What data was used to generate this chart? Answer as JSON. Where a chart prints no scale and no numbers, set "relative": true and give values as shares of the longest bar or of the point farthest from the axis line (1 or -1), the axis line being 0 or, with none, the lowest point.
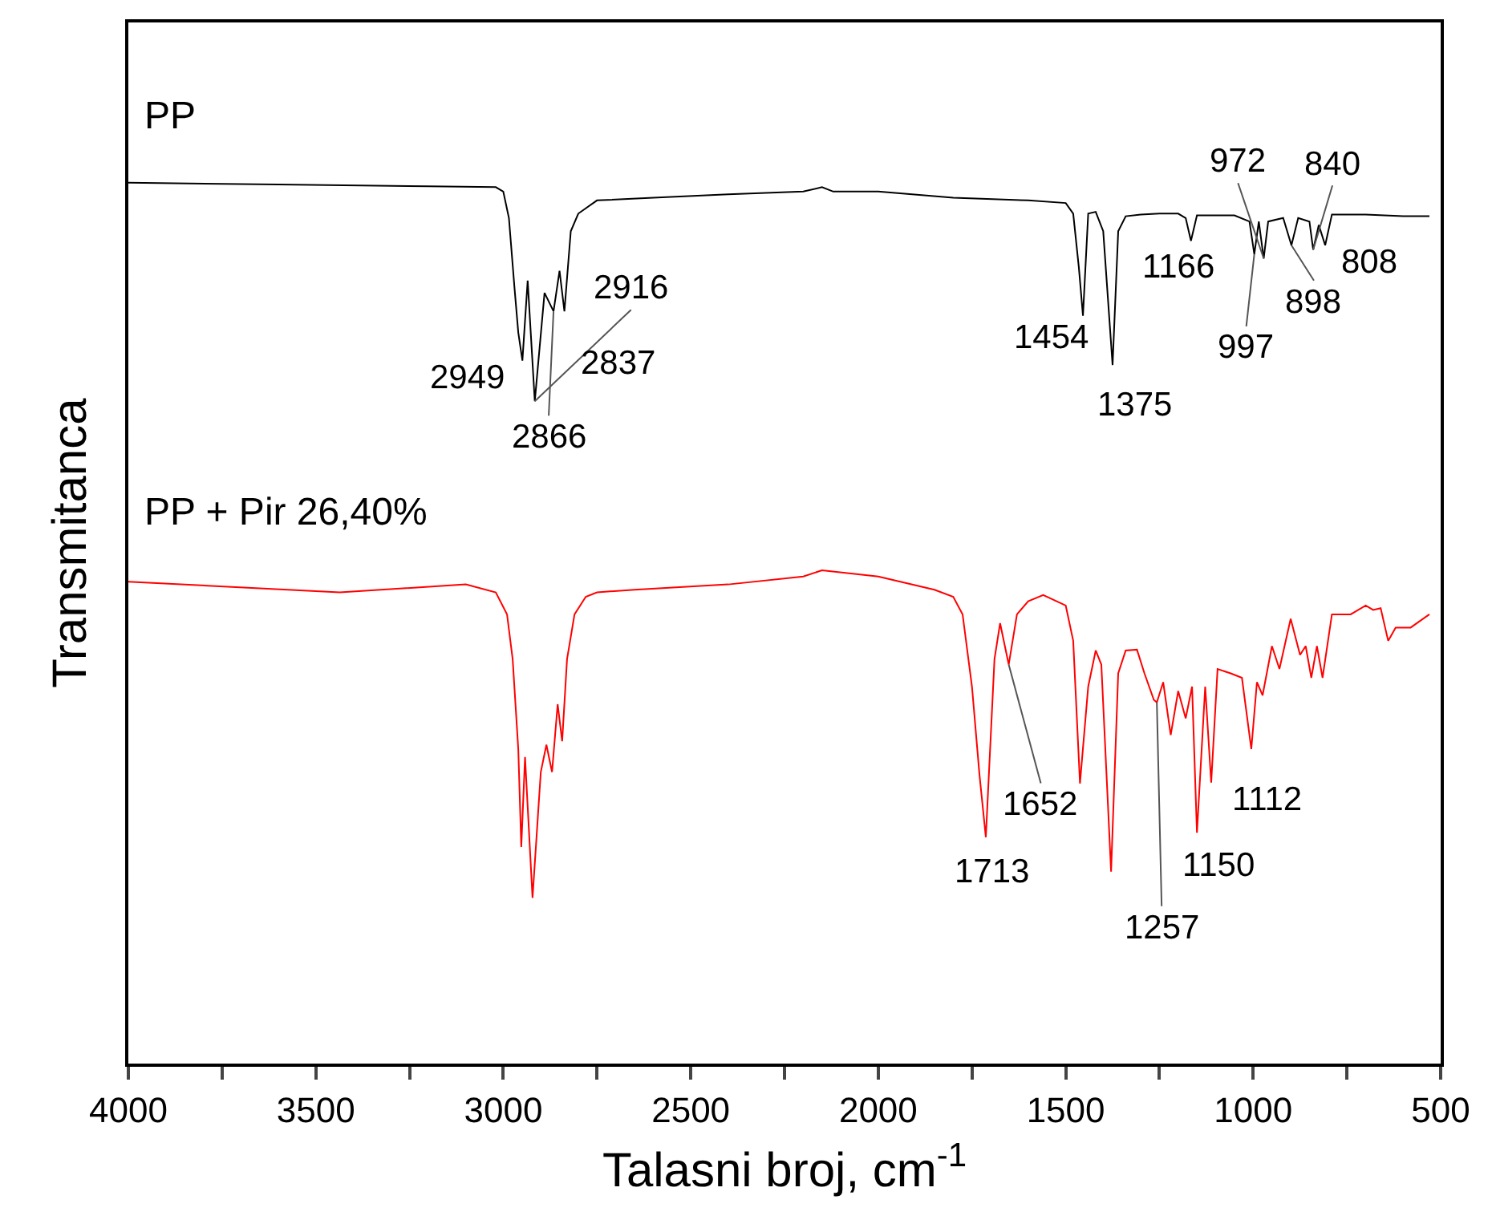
{
  "chart_data": {
    "type": "line",
    "relative": true,
    "xlabel": "Talasni broj, cm$^{-1}$",
    "ylabel": "Transmitanca",
    "xlim": [
      4000,
      500
    ],
    "xticks": [
      4000,
      {
        "value": 3750,
        "label": null
      },
      3500,
      {
        "value": 3250,
        "label": null
      },
      3000,
      {
        "value": 2750,
        "label": null
      },
      2500,
      {
        "value": 2250,
        "label": null
      },
      2000,
      {
        "value": 1750,
        "label": null
      },
      1500,
      {
        "value": 1250,
        "label": null
      },
      1000,
      {
        "value": 750,
        "label": null
      },
      500
    ],
    "legend": false,
    "marker": "none",
    "line_style": "solid",
    "series": [
      {
        "name": "PP",
        "color": "#000000",
        "x": [
          4000,
          3600,
          3200,
          3020,
          3000,
          2985,
          2970,
          2960,
          2949,
          2935,
          2916,
          2890,
          2866,
          2850,
          2837,
          2820,
          2800,
          2750,
          2600,
          2400,
          2200,
          2150,
          2120,
          2000,
          1800,
          1600,
          1500,
          1480,
          1465,
          1454,
          1440,
          1420,
          1400,
          1375,
          1360,
          1340,
          1300,
          1250,
          1200,
          1180,
          1166,
          1150,
          1100,
          1050,
          1010,
          997,
          985,
          972,
          960,
          920,
          898,
          880,
          850,
          840,
          825,
          808,
          790,
          700,
          600,
          530
        ],
        "values": [
          1.0,
          0.998,
          0.996,
          0.995,
          0.99,
          0.96,
          0.88,
          0.83,
          0.798,
          0.889,
          0.752,
          0.875,
          0.854,
          0.9,
          0.854,
          0.945,
          0.965,
          0.98,
          0.983,
          0.987,
          0.99,
          0.995,
          0.99,
          0.99,
          0.983,
          0.98,
          0.977,
          0.965,
          0.904,
          0.849,
          0.965,
          0.967,
          0.945,
          0.793,
          0.945,
          0.962,
          0.964,
          0.965,
          0.965,
          0.96,
          0.934,
          0.963,
          0.963,
          0.963,
          0.956,
          0.919,
          0.956,
          0.914,
          0.956,
          0.96,
          0.929,
          0.96,
          0.956,
          0.924,
          0.952,
          0.929,
          0.964,
          0.964,
          0.962,
          0.962
        ]
      },
      {
        "name": "PP + Pir 26,40%",
        "color": "#ff0000",
        "x": [
          4000,
          3436,
          3100,
          3020,
          2990,
          2975,
          2960,
          2952,
          2942,
          2922,
          2900,
          2885,
          2870,
          2855,
          2843,
          2830,
          2810,
          2780,
          2750,
          2650,
          2400,
          2200,
          2150,
          2000,
          1850,
          1800,
          1775,
          1750,
          1730,
          1713,
          1690,
          1675,
          1652,
          1630,
          1600,
          1560,
          1500,
          1480,
          1462,
          1440,
          1420,
          1405,
          1379,
          1360,
          1340,
          1310,
          1290,
          1265,
          1257,
          1240,
          1220,
          1200,
          1180,
          1163,
          1150,
          1128,
          1112,
          1095,
          1060,
          1030,
          1005,
          990,
          975,
          950,
          930,
          900,
          875,
          860,
          845,
          830,
          815,
          790,
          740,
          700,
          680,
          660,
          640,
          620,
          580,
          530
        ],
        "values": [
          0.547,
          0.535,
          0.544,
          0.535,
          0.51,
          0.459,
          0.357,
          0.246,
          0.348,
          0.188,
          0.331,
          0.362,
          0.331,
          0.408,
          0.366,
          0.459,
          0.51,
          0.53,
          0.535,
          0.538,
          0.544,
          0.553,
          0.56,
          0.553,
          0.538,
          0.53,
          0.51,
          0.428,
          0.328,
          0.257,
          0.459,
          0.5,
          0.453,
          0.51,
          0.525,
          0.532,
          0.52,
          0.48,
          0.318,
          0.428,
          0.469,
          0.453,
          0.218,
          0.443,
          0.469,
          0.47,
          0.443,
          0.413,
          0.41,
          0.433,
          0.373,
          0.423,
          0.392,
          0.428,
          0.262,
          0.428,
          0.319,
          0.448,
          0.443,
          0.438,
          0.357,
          0.433,
          0.418,
          0.474,
          0.448,
          0.505,
          0.464,
          0.474,
          0.438,
          0.474,
          0.438,
          0.51,
          0.51,
          0.52,
          0.515,
          0.517,
          0.48,
          0.495,
          0.495,
          0.51
        ]
      }
    ],
    "annotations": [
      {
        "text": "2949",
        "x": 2949,
        "y": 0.798
      },
      {
        "text": "2916",
        "x": 2916,
        "y": 0.752
      },
      {
        "text": "2866",
        "x": 2866,
        "y": 0.854
      },
      {
        "text": "2837",
        "x": 2837,
        "y": 0.854
      },
      {
        "text": "1454",
        "x": 1454,
        "y": 0.849
      },
      {
        "text": "1375",
        "x": 1375,
        "y": 0.793
      },
      {
        "text": "1166",
        "x": 1166,
        "y": 0.934
      },
      {
        "text": "972",
        "x": 972,
        "y": 0.914
      },
      {
        "text": "997",
        "x": 997,
        "y": 0.919
      },
      {
        "text": "898",
        "x": 898,
        "y": 0.929
      },
      {
        "text": "840",
        "x": 840,
        "y": 0.924
      },
      {
        "text": "808",
        "x": 808,
        "y": 0.929
      },
      {
        "text": "1713",
        "x": 1713,
        "y": 0.257
      },
      {
        "text": "1652",
        "x": 1652,
        "y": 0.453
      },
      {
        "text": "1257",
        "x": 1257,
        "y": 0.41
      },
      {
        "text": "1150",
        "x": 1150,
        "y": 0.262
      },
      {
        "text": "1112",
        "x": 1112,
        "y": 0.319
      }
    ]
  }
}
